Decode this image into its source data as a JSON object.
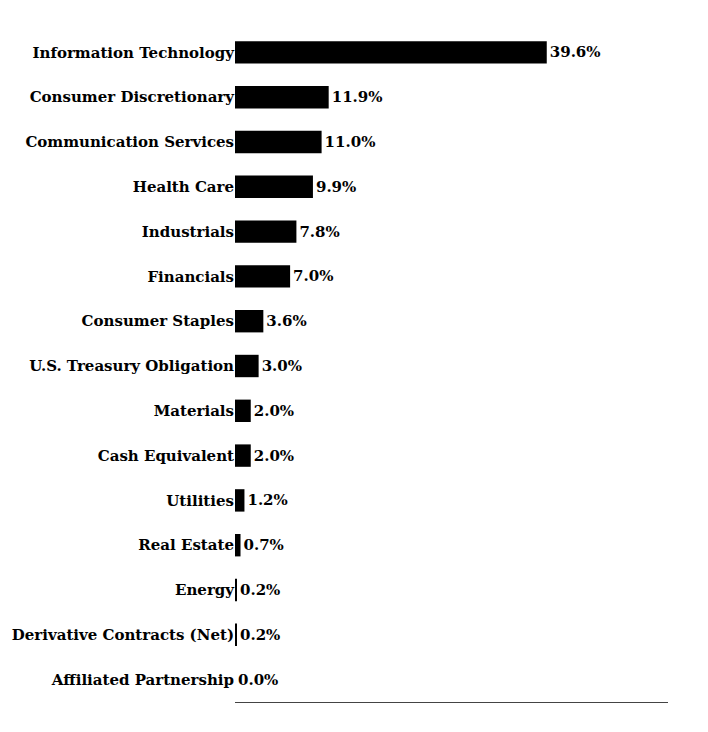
{
  "chart_data": {
    "type": "bar",
    "orientation": "horizontal",
    "categories": [
      "Information Technology",
      "Consumer Discretionary",
      "Communication Services",
      "Health Care",
      "Industrials",
      "Financials",
      "Consumer Staples",
      "U.S. Treasury Obligation",
      "Materials",
      "Cash Equivalent",
      "Utilities",
      "Real Estate",
      "Energy",
      "Derivative Contracts (Net)",
      "Affiliated Partnership"
    ],
    "values": [
      39.6,
      11.9,
      11.0,
      9.9,
      7.8,
      7.0,
      3.6,
      3.0,
      2.0,
      2.0,
      1.2,
      0.7,
      0.2,
      0.2,
      0.0
    ],
    "value_labels": [
      "39.6%",
      "11.9%",
      "11.0%",
      "9.9%",
      "7.8%",
      "7.0%",
      "3.6%",
      "3.0%",
      "2.0%",
      "2.0%",
      "1.2%",
      "0.7%",
      "0.2%",
      "0.2%",
      "0.0%"
    ],
    "data_labels": true,
    "color": "#000000",
    "xlim": [
      0,
      55
    ],
    "grid": false,
    "tick_labels": "y"
  }
}
